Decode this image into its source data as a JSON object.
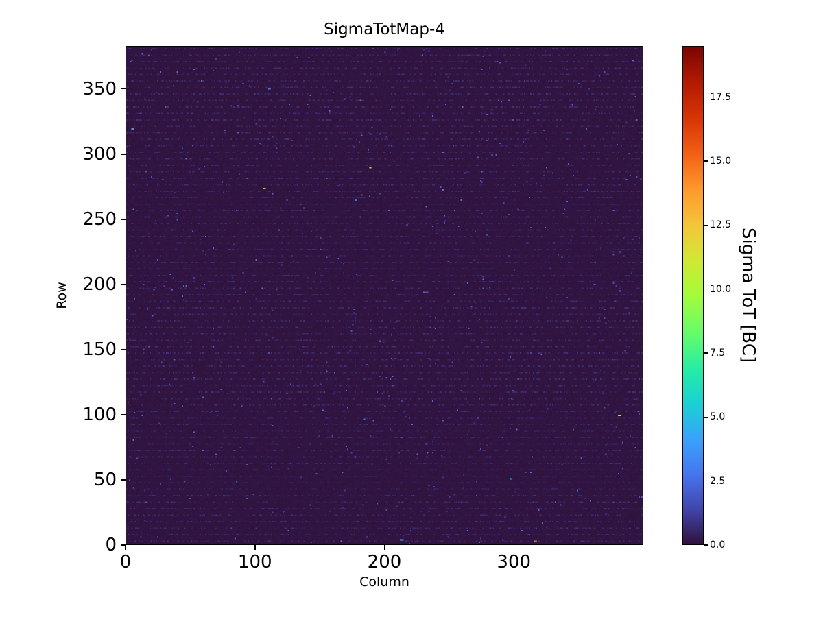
{
  "chart_data": {
    "type": "heatmap",
    "title": "SigmaTotMap-4",
    "xlabel": "Column",
    "ylabel": "Row",
    "colorbar_label": "Sigma ToT [BC]",
    "grid_size": {
      "columns": 400,
      "rows": 384
    },
    "x_range": [
      0,
      400
    ],
    "y_range": [
      0,
      383
    ],
    "x_ticks": [
      0,
      100,
      200,
      300
    ],
    "y_ticks": [
      0,
      50,
      100,
      150,
      200,
      250,
      300,
      350
    ],
    "colorbar_ticks": [
      "0.0",
      "2.5",
      "5.0",
      "7.5",
      "10.0",
      "12.5",
      "15.0",
      "17.5"
    ],
    "colorbar_tick_values": [
      0,
      2.5,
      5,
      7.5,
      10,
      12.5,
      15,
      17.5
    ],
    "value_range": [
      0,
      19.5
    ],
    "colormap": "turbo",
    "colormap_stops": [
      [
        0.0,
        "#30123b"
      ],
      [
        0.07,
        "#4145ab"
      ],
      [
        0.14,
        "#4675ed"
      ],
      [
        0.21,
        "#39a2fc"
      ],
      [
        0.28,
        "#1bcfd4"
      ],
      [
        0.35,
        "#24eca6"
      ],
      [
        0.42,
        "#61fc6c"
      ],
      [
        0.5,
        "#a4fc3b"
      ],
      [
        0.57,
        "#d1e834"
      ],
      [
        0.64,
        "#f3c63a"
      ],
      [
        0.71,
        "#fe9b2d"
      ],
      [
        0.78,
        "#f36315"
      ],
      [
        0.85,
        "#d93806"
      ],
      [
        0.93,
        "#b11901"
      ],
      [
        1.0,
        "#7a0402"
      ]
    ],
    "background": {
      "base_value_max": 0.12,
      "stripe_spacing": 5,
      "stripe_offset": 2,
      "stripe_density": 0.35,
      "stripe_value_range": [
        0.2,
        0.9
      ],
      "speckle_probability": 0.004,
      "speckle_value_range": [
        0.8,
        2.8
      ]
    },
    "hotspots": [
      {
        "col": 110,
        "row": 351,
        "value": 3.0,
        "width": 2
      },
      {
        "col": 4,
        "row": 320,
        "value": 5.0,
        "width": 2
      },
      {
        "col": 188,
        "row": 290,
        "value": 15.5,
        "width": 2
      },
      {
        "col": 106,
        "row": 274,
        "value": 13.5,
        "width": 2
      },
      {
        "col": 177,
        "row": 265,
        "value": 3.0,
        "width": 2
      },
      {
        "col": 230,
        "row": 194,
        "value": 2.5,
        "width": 4
      },
      {
        "col": 381,
        "row": 99,
        "value": 13.5,
        "width": 2
      },
      {
        "col": 297,
        "row": 50,
        "value": 5.5,
        "width": 2
      },
      {
        "col": 212,
        "row": 3,
        "value": 6.0,
        "width": 3
      },
      {
        "col": 316,
        "row": 2,
        "value": 15.0,
        "width": 2
      }
    ]
  }
}
